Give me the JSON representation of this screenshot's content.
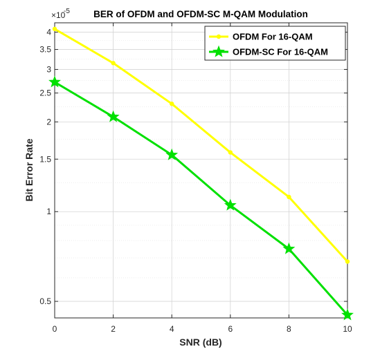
{
  "chart_data": {
    "type": "line",
    "title": "BER of OFDM and OFDM-SC M-QAM Modulation",
    "xlabel": "SNR (dB)",
    "ylabel": "Bit Error Rate",
    "y_multiplier_base": "×10",
    "y_multiplier_exp": "-5",
    "y_scale": "log",
    "xlim": [
      0,
      10
    ],
    "ylim": [
      0.44,
      4.3
    ],
    "x_ticks": [
      0,
      2,
      4,
      6,
      8,
      10
    ],
    "x_tick_labels": [
      "0",
      "2",
      "4",
      "6",
      "8",
      "10"
    ],
    "y_ticks": [
      0.5,
      1,
      1.5,
      2,
      2.5,
      3,
      3.5,
      4
    ],
    "y_tick_labels": [
      "0.5",
      "1",
      "1.5",
      "2",
      "2.5",
      "3",
      "3.5",
      "4"
    ],
    "grid": true,
    "legend_position": "top-right",
    "x": [
      0,
      2,
      4,
      6,
      8,
      10
    ],
    "series": [
      {
        "name": "OFDM For 16-QAM",
        "color": "#ffff00",
        "marker": "dot",
        "values": [
          4.1,
          3.15,
          2.3,
          1.58,
          1.12,
          0.68
        ]
      },
      {
        "name": "OFDM-SC For 16-QAM",
        "color": "#00e000",
        "marker": "star",
        "values": [
          2.72,
          2.08,
          1.55,
          1.05,
          0.75,
          0.45
        ]
      }
    ]
  }
}
